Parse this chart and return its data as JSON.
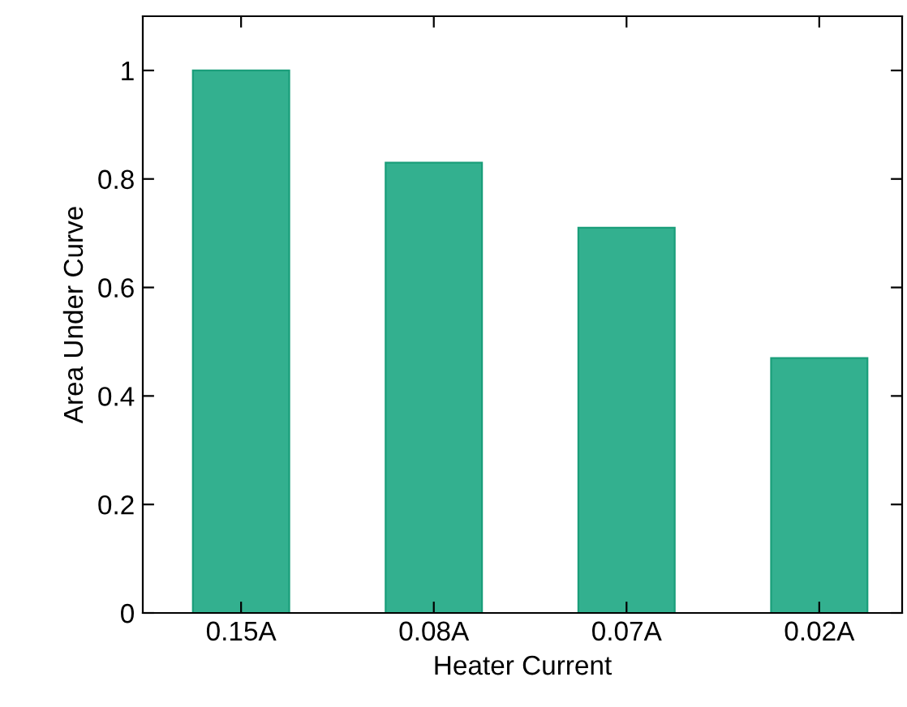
{
  "chart_data": {
    "type": "bar",
    "xlabel": "Heater Current",
    "ylabel": "Area Under Curve",
    "categories": [
      "0.15A",
      "0.08A",
      "0.07A",
      "0.02A"
    ],
    "values": [
      1.0,
      0.83,
      0.71,
      0.47
    ],
    "color": "#33b08f",
    "ylim": [
      0,
      1.1
    ],
    "yticks": [
      0,
      0.2,
      0.4,
      0.6,
      0.8,
      1
    ],
    "grid": false,
    "legend": false
  }
}
